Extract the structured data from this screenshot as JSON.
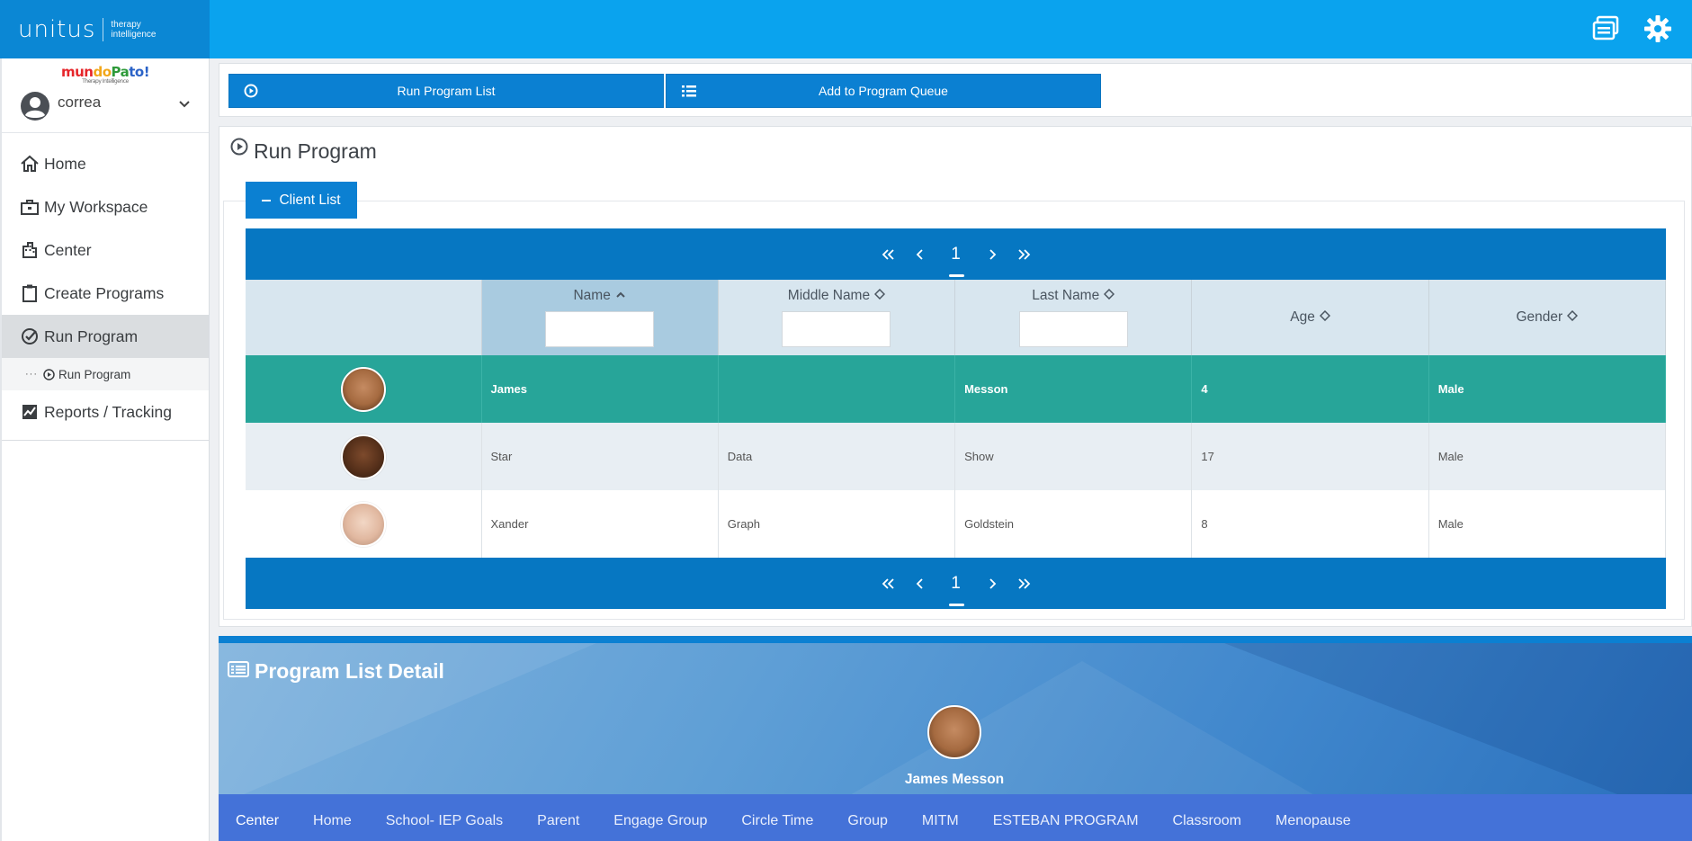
{
  "brand": {
    "name": "unitus",
    "sub_line1": "therapy",
    "sub_line2": "intelligence"
  },
  "sidebar": {
    "org_logo": {
      "part1": "mun",
      "part2": "do",
      "part3": "Pa",
      "part4": "to!",
      "tagline": "Therapy Intelligence"
    },
    "user": {
      "name": "correa"
    },
    "items": [
      {
        "label": "Home",
        "icon": "home-icon"
      },
      {
        "label": "My Workspace",
        "icon": "briefcase-icon"
      },
      {
        "label": "Center",
        "icon": "building-icon"
      },
      {
        "label": "Create Programs",
        "icon": "clipboard-icon"
      },
      {
        "label": "Run Program",
        "icon": "check-circle-icon",
        "active": true
      },
      {
        "label": "Reports / Tracking",
        "icon": "chart-icon"
      }
    ],
    "sub_items": [
      {
        "label": "Run Program",
        "icon": "play-circle-icon"
      }
    ]
  },
  "actions": {
    "run_list_label": "Run Program List",
    "add_queue_label": "Add to Program Queue"
  },
  "run_program": {
    "title": "Run Program",
    "client_list_label": "Client List",
    "pager": {
      "page": "1"
    },
    "columns": [
      {
        "label": "",
        "sortable": false
      },
      {
        "label": "Name",
        "sortable": true,
        "sorted": "asc",
        "filter": true
      },
      {
        "label": "Middle Name",
        "sortable": true,
        "filter": true
      },
      {
        "label": "Last Name",
        "sortable": true,
        "filter": true
      },
      {
        "label": "Age",
        "sortable": true
      },
      {
        "label": "Gender",
        "sortable": true
      }
    ],
    "rows": [
      {
        "name": "James",
        "middle": "",
        "last": "Messon",
        "age": "4",
        "gender": "Male",
        "selected": true
      },
      {
        "name": "Star",
        "middle": "Data",
        "last": "Show",
        "age": "17",
        "gender": "Male"
      },
      {
        "name": "Xander",
        "middle": "Graph",
        "last": "Goldstein",
        "age": "8",
        "gender": "Male"
      }
    ]
  },
  "detail": {
    "title": "Program List Detail",
    "client_name": "James Messon",
    "tabs": [
      "Center",
      "Home",
      "School- IEP Goals",
      "Parent",
      "Engage Group",
      "Circle Time",
      "Group",
      "MITM",
      "ESTEBAN PROGRAM",
      "Classroom",
      "Menopause"
    ],
    "active_tab": "Center"
  },
  "colors": {
    "topbar": "#0aa3ee",
    "primary": "#0b80d2",
    "selected_row": "#27a599",
    "tabs_bg": "#4472d8"
  }
}
